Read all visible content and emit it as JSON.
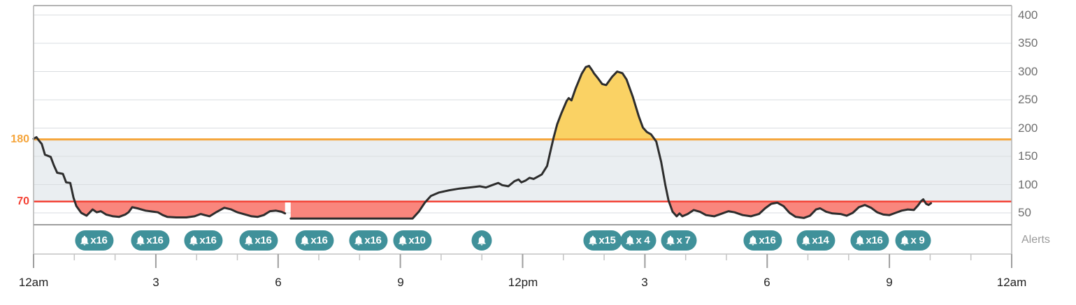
{
  "chart_data": {
    "type": "line",
    "description": "24-hour glucose trace with target range band, high/low threshold lines and alert badges",
    "x_axis": {
      "range_hours": [
        0,
        24
      ],
      "minor_tick_every_hours": 1,
      "major_tick_every_hours": 3,
      "tick_labels": [
        {
          "hour": 0,
          "label": "12am"
        },
        {
          "hour": 3,
          "label": "3"
        },
        {
          "hour": 6,
          "label": "6"
        },
        {
          "hour": 9,
          "label": "9"
        },
        {
          "hour": 12,
          "label": "12pm"
        },
        {
          "hour": 15,
          "label": "3"
        },
        {
          "hour": 18,
          "label": "6"
        },
        {
          "hour": 21,
          "label": "9"
        },
        {
          "hour": 24,
          "label": "12am"
        }
      ]
    },
    "y_axis": {
      "side": "right",
      "ticks": [
        400,
        350,
        300,
        250,
        200,
        150,
        100,
        50
      ],
      "visible_range": [
        29,
        417
      ]
    },
    "target_band": {
      "from": 70,
      "to": 180,
      "color": "#EAEEF1"
    },
    "thresholds": {
      "high": {
        "value": 180,
        "label": "180",
        "line_color": "#F5A53C",
        "fill_above_color": "#FAD264"
      },
      "low": {
        "value": 70,
        "label": "70",
        "line_color": "#F44336",
        "fill_below_color": "#F9867D"
      }
    },
    "series": [
      {
        "name": "glucose",
        "line_color": "#2D2D2D",
        "segments": [
          [
            [
              0,
              181
            ],
            [
              0.07,
              184
            ],
            [
              0.13,
              178
            ],
            [
              0.2,
              172
            ],
            [
              0.28,
              153
            ],
            [
              0.42,
              149
            ],
            [
              0.5,
              134
            ],
            [
              0.58,
              121
            ],
            [
              0.72,
              119
            ],
            [
              0.8,
              104
            ],
            [
              0.9,
              103
            ],
            [
              0.98,
              77
            ],
            [
              1.05,
              62
            ],
            [
              1.17,
              50
            ],
            [
              1.3,
              45
            ],
            [
              1.45,
              56
            ],
            [
              1.55,
              51
            ],
            [
              1.65,
              53
            ],
            [
              1.78,
              47
            ],
            [
              1.95,
              44
            ],
            [
              2.1,
              43
            ],
            [
              2.25,
              47
            ],
            [
              2.33,
              51
            ],
            [
              2.42,
              60
            ],
            [
              2.55,
              58
            ],
            [
              2.75,
              54
            ],
            [
              2.95,
              52
            ],
            [
              3.05,
              51
            ],
            [
              3.17,
              46
            ],
            [
              3.28,
              43
            ],
            [
              3.5,
              42
            ],
            [
              3.75,
              42
            ],
            [
              3.95,
              44
            ],
            [
              4.1,
              48
            ],
            [
              4.2,
              46
            ],
            [
              4.32,
              44
            ],
            [
              4.5,
              52
            ],
            [
              4.68,
              59
            ],
            [
              4.85,
              56
            ],
            [
              5.0,
              51
            ],
            [
              5.2,
              47
            ],
            [
              5.35,
              44
            ],
            [
              5.5,
              43
            ],
            [
              5.65,
              46
            ],
            [
              5.8,
              53
            ],
            [
              5.95,
              54
            ],
            [
              6.08,
              52
            ],
            [
              6.17,
              49
            ]
          ],
          [
            [
              6.31,
              40
            ],
            [
              9.3,
              40
            ],
            [
              9.45,
              52
            ],
            [
              9.6,
              68
            ],
            [
              9.75,
              80
            ],
            [
              9.95,
              86
            ],
            [
              10.2,
              90
            ],
            [
              10.45,
              93
            ],
            [
              10.7,
              95
            ],
            [
              10.95,
              97
            ],
            [
              11.1,
              95
            ],
            [
              11.25,
              99
            ],
            [
              11.4,
              103
            ],
            [
              11.5,
              99
            ],
            [
              11.65,
              97
            ],
            [
              11.8,
              106
            ],
            [
              11.9,
              109
            ],
            [
              11.97,
              104
            ],
            [
              12.07,
              107
            ],
            [
              12.17,
              112
            ],
            [
              12.27,
              110
            ],
            [
              12.37,
              114
            ],
            [
              12.47,
              118
            ],
            [
              12.6,
              133
            ],
            [
              12.68,
              158
            ],
            [
              12.76,
              183
            ],
            [
              12.85,
              207
            ],
            [
              12.95,
              226
            ],
            [
              13.08,
              248
            ],
            [
              13.13,
              253
            ],
            [
              13.2,
              249
            ],
            [
              13.3,
              270
            ],
            [
              13.45,
              296
            ],
            [
              13.55,
              308
            ],
            [
              13.63,
              310
            ],
            [
              13.7,
              303
            ],
            [
              13.75,
              297
            ],
            [
              13.85,
              288
            ],
            [
              13.95,
              278
            ],
            [
              14.05,
              276
            ],
            [
              14.2,
              291
            ],
            [
              14.32,
              300
            ],
            [
              14.45,
              297
            ],
            [
              14.55,
              286
            ],
            [
              14.7,
              256
            ],
            [
              14.85,
              221
            ],
            [
              14.95,
              201
            ],
            [
              15.05,
              193
            ],
            [
              15.15,
              189
            ],
            [
              15.28,
              176
            ],
            [
              15.4,
              140
            ],
            [
              15.5,
              100
            ],
            [
              15.58,
              72
            ],
            [
              15.68,
              52
            ],
            [
              15.78,
              44
            ],
            [
              15.85,
              49
            ],
            [
              15.92,
              44
            ],
            [
              16.05,
              48
            ],
            [
              16.2,
              55
            ],
            [
              16.35,
              52
            ],
            [
              16.5,
              46
            ],
            [
              16.7,
              44
            ],
            [
              16.9,
              49
            ],
            [
              17.05,
              53
            ],
            [
              17.2,
              51
            ],
            [
              17.4,
              46
            ],
            [
              17.6,
              44
            ],
            [
              17.8,
              48
            ],
            [
              17.95,
              58
            ],
            [
              18.1,
              66
            ],
            [
              18.25,
              68
            ],
            [
              18.4,
              62
            ],
            [
              18.55,
              50
            ],
            [
              18.7,
              43
            ],
            [
              18.9,
              41
            ],
            [
              19.05,
              45
            ],
            [
              19.2,
              56
            ],
            [
              19.3,
              58
            ],
            [
              19.45,
              52
            ],
            [
              19.6,
              49
            ],
            [
              19.8,
              48
            ],
            [
              19.95,
              45
            ],
            [
              20.1,
              50
            ],
            [
              20.25,
              60
            ],
            [
              20.4,
              64
            ],
            [
              20.55,
              59
            ],
            [
              20.7,
              51
            ],
            [
              20.85,
              47
            ],
            [
              21.0,
              46
            ],
            [
              21.15,
              50
            ],
            [
              21.3,
              54
            ],
            [
              21.45,
              56
            ],
            [
              21.6,
              55
            ],
            [
              21.7,
              63
            ],
            [
              21.78,
              71
            ],
            [
              21.83,
              74
            ],
            [
              21.9,
              66
            ],
            [
              21.96,
              64
            ],
            [
              22.02,
              67
            ]
          ]
        ]
      }
    ],
    "alerts": {
      "label": "Alerts",
      "badge_color": "#40919A",
      "badges": [
        {
          "hour": 1.5,
          "count": "x16"
        },
        {
          "hour": 2.87,
          "count": "x16"
        },
        {
          "hour": 4.17,
          "count": "x16"
        },
        {
          "hour": 5.52,
          "count": "x16"
        },
        {
          "hour": 6.9,
          "count": "x16"
        },
        {
          "hour": 8.22,
          "count": "x16"
        },
        {
          "hour": 9.3,
          "count": "x10"
        },
        {
          "hour": 11.0,
          "count": ""
        },
        {
          "hour": 13.96,
          "count": "x15"
        },
        {
          "hour": 14.84,
          "count": "x 4"
        },
        {
          "hour": 15.83,
          "count": "x 7"
        },
        {
          "hour": 17.89,
          "count": "x16"
        },
        {
          "hour": 19.19,
          "count": "x14"
        },
        {
          "hour": 20.52,
          "count": "x16"
        },
        {
          "hour": 21.58,
          "count": "x 9"
        }
      ]
    }
  }
}
